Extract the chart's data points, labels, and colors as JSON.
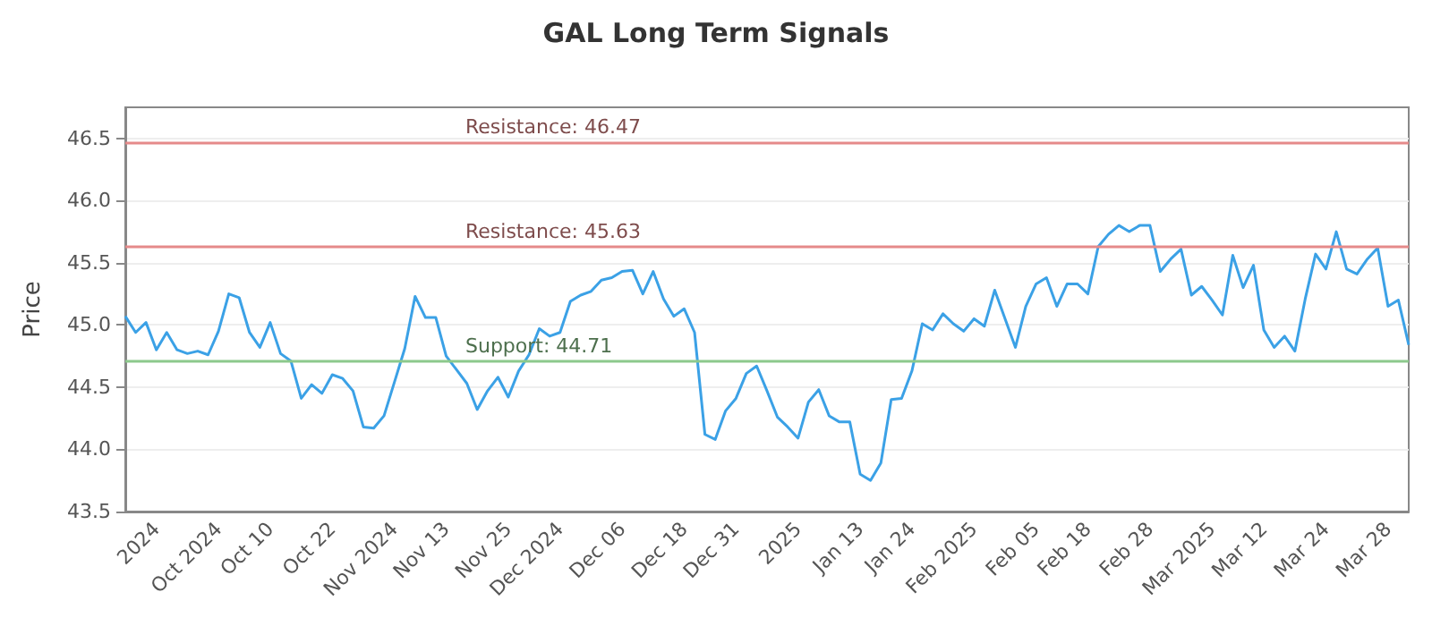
{
  "chart_data": {
    "type": "line",
    "title": "GAL Long Term Signals",
    "ylabel": "Price",
    "categories": [
      null,
      null,
      null,
      "2024",
      null,
      null,
      null,
      null,
      null,
      "Oct 2024",
      null,
      null,
      null,
      null,
      "Oct 10",
      null,
      null,
      null,
      null,
      null,
      "Oct 22",
      null,
      null,
      null,
      null,
      null,
      "Nov 2024",
      null,
      null,
      null,
      null,
      "Nov 13",
      null,
      null,
      null,
      null,
      null,
      "Nov 25",
      null,
      null,
      null,
      null,
      "Dec 2024",
      null,
      null,
      null,
      null,
      null,
      "Dec 06",
      null,
      null,
      null,
      null,
      null,
      "Dec 18",
      null,
      null,
      null,
      null,
      "Dec 31",
      null,
      null,
      null,
      null,
      null,
      "2025",
      null,
      null,
      null,
      null,
      null,
      "Jan 13",
      null,
      null,
      null,
      null,
      "Jan 24",
      null,
      null,
      null,
      null,
      null,
      "Feb 2025",
      null,
      null,
      null,
      null,
      null,
      "Feb 05",
      null,
      null,
      null,
      null,
      "Feb 18",
      null,
      null,
      null,
      null,
      null,
      "Feb 28",
      null,
      null,
      null,
      null,
      null,
      "Mar 2025",
      null,
      null,
      null,
      null,
      "Mar 12",
      null,
      null,
      null,
      null,
      null,
      "Mar 24",
      null,
      null,
      null,
      null,
      null,
      "Mar 28",
      null,
      null
    ],
    "series": [
      {
        "color": "#3ba1e6",
        "values": [
          45.07,
          44.94,
          45.02,
          44.8,
          44.94,
          44.8,
          44.77,
          44.79,
          44.76,
          44.95,
          45.25,
          45.22,
          44.94,
          44.82,
          45.02,
          44.77,
          44.71,
          44.41,
          44.52,
          44.45,
          44.6,
          44.57,
          44.47,
          44.18,
          44.17,
          44.27,
          44.54,
          44.81,
          45.23,
          45.06,
          45.06,
          44.75,
          44.64,
          44.53,
          44.32,
          44.47,
          44.58,
          44.42,
          44.63,
          44.76,
          44.97,
          44.91,
          44.94,
          45.19,
          45.24,
          45.27,
          45.36,
          45.38,
          45.43,
          45.44,
          45.25,
          45.43,
          45.21,
          45.07,
          45.13,
          44.94,
          44.12,
          44.08,
          44.31,
          44.41,
          44.61,
          44.67,
          44.47,
          44.26,
          44.18,
          44.09,
          44.38,
          44.48,
          44.27,
          44.22,
          44.22,
          43.8,
          43.75,
          43.89,
          44.4,
          44.41,
          44.63,
          45.01,
          44.96,
          45.09,
          45.01,
          44.95,
          45.05,
          44.99,
          45.28,
          45.05,
          44.82,
          45.15,
          45.33,
          45.38,
          45.15,
          45.33,
          45.33,
          45.25,
          45.63,
          45.73,
          45.8,
          45.75,
          45.8,
          45.8,
          45.43,
          45.53,
          45.61,
          45.24,
          45.31,
          45.2,
          45.08,
          45.56,
          45.3,
          45.48,
          44.96,
          44.82,
          44.91,
          44.79,
          45.21,
          45.57,
          45.45,
          45.75,
          45.45,
          45.41,
          45.53,
          45.62,
          45.15,
          45.2,
          44.84
        ]
      }
    ],
    "ylim": [
      43.5,
      46.75
    ],
    "yticks": [
      43.5,
      {
        "value": 44,
        "label": "44.0"
      },
      44.5,
      {
        "value": 45,
        "label": "45.0"
      },
      45.5,
      {
        "value": 46,
        "label": "46.0"
      },
      46.5
    ],
    "ref_lines": [
      {
        "axis": "y",
        "value": 46.47,
        "label": "Resistance: 46.47",
        "color": "#e58a8a"
      },
      {
        "axis": "y",
        "value": 45.63,
        "label": "Resistance: 45.63",
        "color": "#e58a8a"
      },
      {
        "axis": "y",
        "value": 44.71,
        "label": "Support: 44.71",
        "color": "#8cc98c"
      }
    ],
    "grid": "y",
    "marker": "none",
    "line_style": "solid"
  }
}
